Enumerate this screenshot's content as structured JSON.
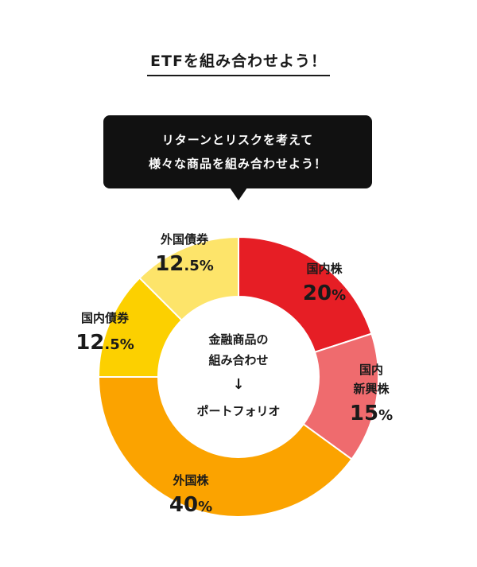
{
  "title": "ETFを組み合わせよう！",
  "bubble": {
    "line1": "リターンとリスクを考えて",
    "line2": "様々な商品を組み合わせよう！"
  },
  "center": {
    "line1": "金融商品の",
    "line2": "組み合わせ",
    "arrow": "↓",
    "line3": "ポートフォリオ"
  },
  "chart_data": {
    "type": "pie",
    "categories": [
      "国内株",
      "国内新興株",
      "外国株",
      "国内債券",
      "外国債券"
    ],
    "values": [
      20,
      15,
      40,
      12.5,
      12.5
    ],
    "unit": "%",
    "value_labels": [
      {
        "main": "20",
        "suffix": "%"
      },
      {
        "main": "15",
        "suffix": "%"
      },
      {
        "main": "40",
        "suffix": "%"
      },
      {
        "main": "12",
        "suffix": ".5%"
      },
      {
        "main": "12",
        "suffix": ".5%"
      }
    ],
    "category_lines": [
      [
        "国内株"
      ],
      [
        "国内",
        "新興株"
      ],
      [
        "外国株"
      ],
      [
        "国内債券"
      ],
      [
        "外国債券"
      ]
    ],
    "colors": [
      "#e61e25",
      "#ef6b6e",
      "#fba300",
      "#fcd000",
      "#fde46a"
    ],
    "start": "top",
    "direction": "clockwise",
    "donut": true
  }
}
